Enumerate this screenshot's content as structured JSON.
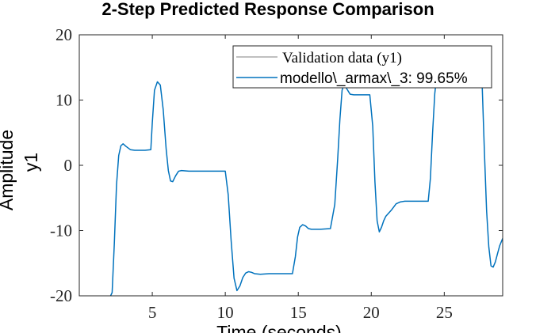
{
  "chart_data": {
    "type": "line",
    "title": "2-Step Predicted Response Comparison",
    "xlabel": "Time (seconds)",
    "ylabel": "Amplitude",
    "channel_label": "y1",
    "xlim": [
      0,
      29
    ],
    "ylim": [
      -20,
      20
    ],
    "xticks": [
      5,
      10,
      15,
      20,
      25
    ],
    "yticks": [
      -20,
      -10,
      0,
      10,
      20
    ],
    "grid": false,
    "legend_position": "top-right",
    "series": [
      {
        "name": "Validation data (y1)",
        "color": "#808080",
        "x": [
          0,
          29
        ],
        "y": [
          -20,
          -20
        ],
        "hidden_behind": true
      },
      {
        "name": "modello\\_armax\\_3: 99.65%",
        "color": "#0072BD",
        "x": [
          0,
          2.1,
          2.25,
          2.4,
          2.55,
          2.7,
          2.85,
          3.0,
          3.2,
          3.5,
          3.8,
          4.1,
          4.5,
          4.9,
          5.0,
          5.15,
          5.35,
          5.55,
          5.75,
          5.95,
          6.1,
          6.25,
          6.4,
          6.6,
          6.8,
          7.0,
          7.5,
          8.0,
          9.0,
          10.0,
          10.2,
          10.4,
          10.6,
          10.8,
          11.0,
          11.2,
          11.4,
          11.6,
          11.8,
          12.0,
          12.4,
          13.0,
          14.0,
          14.6,
          14.8,
          14.95,
          15.1,
          15.3,
          15.5,
          15.7,
          15.9,
          16.1,
          16.5,
          17.2,
          17.5,
          17.7,
          17.85,
          18.0,
          18.15,
          18.3,
          18.55,
          18.8,
          19.1,
          19.5,
          19.9,
          20.1,
          20.25,
          20.4,
          20.55,
          20.7,
          20.85,
          21.0,
          21.2,
          21.4,
          21.7,
          22.0,
          22.3,
          23.0,
          23.9,
          24.05,
          24.2,
          24.35,
          24.5,
          24.6,
          24.7,
          27.5,
          27.6,
          27.75,
          27.9,
          28.05,
          28.2,
          28.35,
          28.5,
          28.65,
          28.8,
          29.0
        ],
        "y": [
          -20.2,
          -20.2,
          -19.5,
          -12.0,
          -3.0,
          1.5,
          3.0,
          3.3,
          2.9,
          2.4,
          2.3,
          2.3,
          2.3,
          2.4,
          6.5,
          11.5,
          12.8,
          12.3,
          8.5,
          2.5,
          -0.8,
          -2.4,
          -2.5,
          -1.6,
          -0.9,
          -0.8,
          -0.9,
          -0.9,
          -0.9,
          -0.9,
          -4.5,
          -11.5,
          -17.3,
          -19.2,
          -18.5,
          -17.2,
          -16.5,
          -16.3,
          -16.4,
          -16.6,
          -16.7,
          -16.6,
          -16.6,
          -16.6,
          -14.0,
          -11.0,
          -9.5,
          -9.1,
          -9.3,
          -9.7,
          -9.8,
          -9.8,
          -9.8,
          -9.7,
          -6.0,
          1.0,
          7.0,
          11.5,
          12.5,
          11.8,
          10.9,
          10.8,
          10.8,
          10.8,
          10.8,
          6.0,
          -2.5,
          -8.5,
          -10.2,
          -9.5,
          -8.5,
          -7.8,
          -7.3,
          -6.8,
          -5.9,
          -5.6,
          -5.5,
          -5.5,
          -5.5,
          -2.0,
          5.0,
          11.0,
          14.0,
          14.8,
          15.0,
          15.0,
          12.0,
          2.0,
          -7.0,
          -12.5,
          -15.4,
          -15.6,
          -14.8,
          -13.5,
          -12.3,
          -11.2
        ]
      }
    ]
  }
}
